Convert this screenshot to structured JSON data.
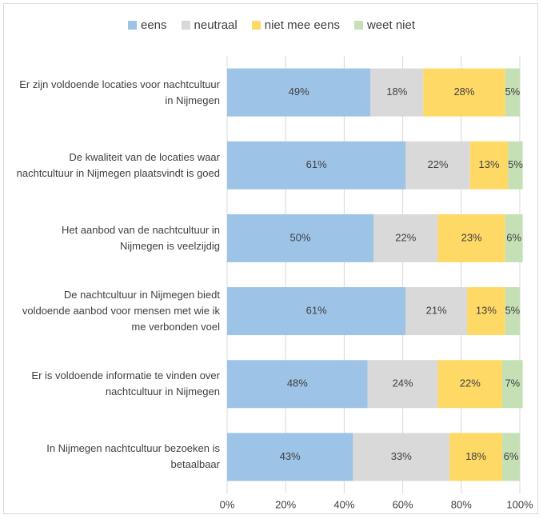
{
  "chart_data": {
    "type": "stacked-bar-horizontal",
    "categories": [
      "Er zijn voldoende locaties voor nachtcultuur in Nijmegen",
      "De kwaliteit van de locaties waar nachtcultuur in Nijmegen plaatsvindt is goed",
      "Het aanbod van de nachtcultuur in Nijmegen is veelzijdig",
      "De nachtcultuur in Nijmegen biedt voldoende aanbod voor mensen met wie ik me verbonden voel",
      "Er is voldoende informatie te vinden over nachtcultuur in Nijmegen",
      "In Nijmegen nachtcultuur bezoeken is betaalbaar"
    ],
    "series": [
      {
        "name": "eens",
        "color": "#9dc3e6",
        "values": [
          49,
          61,
          50,
          61,
          48,
          43
        ],
        "value_labels": [
          "49%",
          "61%",
          "50%",
          "61%",
          "48%",
          "43%"
        ]
      },
      {
        "name": "neutraal",
        "color": "#d9d9d9",
        "values": [
          18,
          22,
          22,
          21,
          24,
          33
        ],
        "value_labels": [
          "18%",
          "22%",
          "22%",
          "21%",
          "24%",
          "33%"
        ]
      },
      {
        "name": "niet mee eens",
        "color": "#ffd966",
        "values": [
          28,
          13,
          23,
          13,
          22,
          18
        ],
        "value_labels": [
          "28%",
          "13%",
          "23%",
          "13%",
          "22%",
          "18%"
        ]
      },
      {
        "name": "weet niet",
        "color": "#c5e0b4",
        "values": [
          5,
          5,
          6,
          5,
          7,
          6
        ],
        "value_labels": [
          "5%",
          "5%",
          "6%",
          "5%",
          "7%",
          "6%"
        ]
      }
    ],
    "xlim": [
      0,
      100
    ],
    "xticks": [
      {
        "value": 0,
        "label": "0%"
      },
      {
        "value": 20,
        "label": "20%"
      },
      {
        "value": 40,
        "label": "40%"
      },
      {
        "value": 60,
        "label": "60%"
      },
      {
        "value": 80,
        "label": "80%"
      },
      {
        "value": 100,
        "label": "100%"
      }
    ],
    "grid": true,
    "legend": "top"
  }
}
